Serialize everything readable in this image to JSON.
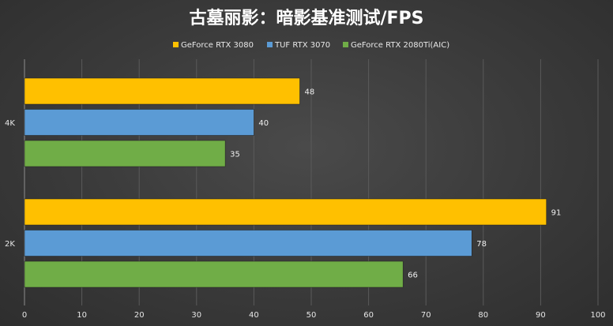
{
  "chart_data": {
    "type": "bar",
    "orientation": "horizontal",
    "title": "古墓丽影：暗影基准测试/FPS",
    "categories": [
      "4K",
      "2K"
    ],
    "series": [
      {
        "name": "GeForce RTX 3080",
        "color": "#ffc000",
        "values": [
          48,
          91
        ]
      },
      {
        "name": "TUF RTX 3070",
        "color": "#5b9bd5",
        "values": [
          40,
          78
        ]
      },
      {
        "name": "GeForce RTX 2080Ti(AIC)",
        "color": "#70ad47",
        "values": [
          35,
          66
        ]
      }
    ],
    "xlim": [
      0,
      100
    ],
    "xticks": [
      "0",
      "10",
      "20",
      "30",
      "40",
      "50",
      "60",
      "70",
      "80",
      "90",
      "100"
    ],
    "grid": true,
    "legend_position": "top"
  }
}
